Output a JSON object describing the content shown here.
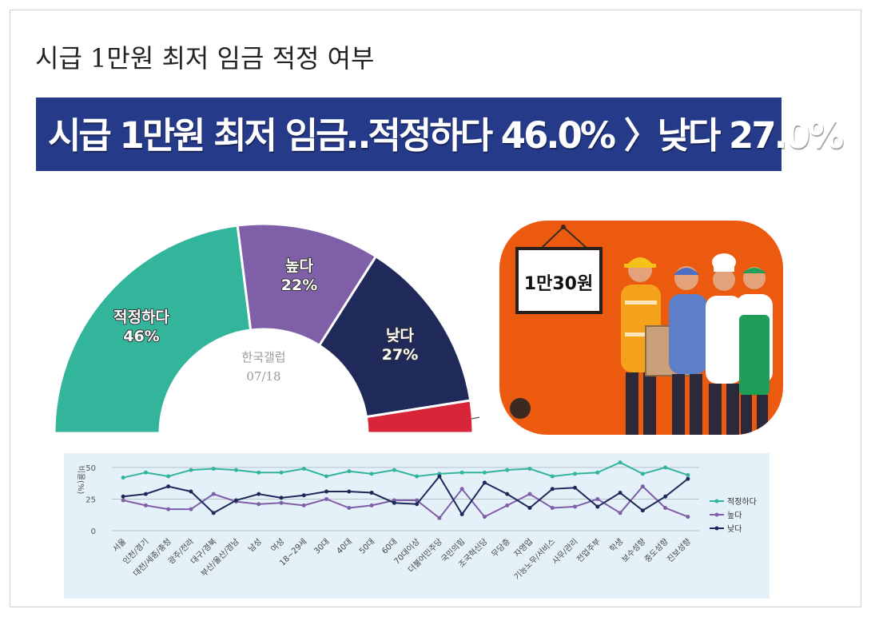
{
  "page_title": "시급 1만원 최저 임금 적정 여부",
  "headline": "시급 1만원 최저 임금‥적정하다 46.0% 〉낮다 27.0%",
  "colors": {
    "teal": "#33b59b",
    "purple": "#7e5fa8",
    "navy": "#1f2a5a",
    "red": "#d9253a",
    "headline_bg": "#263a8a",
    "illustration_bg": "#ec5a10"
  },
  "illustration": {
    "sign_text": "1만30원"
  },
  "chart_data": [
    {
      "type": "pie",
      "variant": "half-donut",
      "source": "한국갤럽",
      "date": "07/18",
      "slices": [
        {
          "name": "적정하다",
          "label": "46%",
          "value": 46,
          "color": "#33b59b"
        },
        {
          "name": "높다",
          "label": "22%",
          "value": 22,
          "color": "#7e5fa8"
        },
        {
          "name": "낮다",
          "label": "27%",
          "value": 27,
          "color": "#1f2a5a"
        },
        {
          "name": "",
          "label": "",
          "value": 5,
          "color": "#d9253a"
        }
      ]
    },
    {
      "type": "line",
      "ylabel": "비율(%)",
      "ylim": [
        0,
        55
      ],
      "yticks": [
        0,
        25,
        50
      ],
      "grid": true,
      "legend": "right",
      "categories": [
        "서울",
        "인천/경기",
        "대전/세종/충청",
        "광주/전라",
        "대구/경북",
        "부산/울산/경남",
        "남성",
        "여성",
        "18~29세",
        "30대",
        "40대",
        "50대",
        "60대",
        "70대이상",
        "더불어민주당",
        "국민의힘",
        "조국혁신당",
        "무당층",
        "자영업",
        "기능노무/서비스",
        "사무/관리",
        "전업주부",
        "학생",
        "보수성향",
        "중도성향",
        "진보성향"
      ],
      "series": [
        {
          "name": "적정하다",
          "color": "#33b59b",
          "values": [
            42,
            46,
            43,
            48,
            49,
            48,
            46,
            46,
            49,
            43,
            47,
            45,
            48,
            43,
            45,
            46,
            46,
            48,
            49,
            43,
            45,
            46,
            54,
            45,
            50,
            44
          ]
        },
        {
          "name": "높다",
          "color": "#7e5fa8",
          "values": [
            24,
            20,
            17,
            17,
            29,
            23,
            21,
            22,
            20,
            25,
            18,
            20,
            24,
            24,
            10,
            33,
            11,
            20,
            29,
            18,
            19,
            25,
            14,
            35,
            18,
            11
          ]
        },
        {
          "name": "낮다",
          "color": "#1f2a5a",
          "values": [
            27,
            29,
            35,
            31,
            14,
            24,
            29,
            26,
            28,
            31,
            31,
            30,
            22,
            21,
            43,
            13,
            38,
            29,
            18,
            33,
            34,
            19,
            30,
            16,
            27,
            41
          ]
        }
      ]
    }
  ]
}
